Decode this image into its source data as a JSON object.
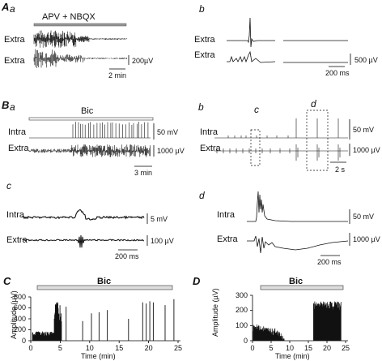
{
  "panels": {
    "Aa": {
      "label_main": "A",
      "label_sub": "a",
      "drug_bar": "APV + NBQX",
      "traces": [
        "Extra",
        "Extra"
      ],
      "scale_y": "200µV",
      "scale_x": "2 min"
    },
    "Ab": {
      "label": "b",
      "traces": [
        "Extra",
        "Extra"
      ],
      "scale_y": "500 µV",
      "scale_x": "200 ms"
    },
    "Ba": {
      "label_main": "B",
      "label_sub": "a",
      "drug_bar": "Bic",
      "traces": [
        "Intra",
        "Extra"
      ],
      "scale_y1": "50 mV",
      "scale_y2": "1000 µV",
      "scale_x": "3 min"
    },
    "Bb": {
      "label": "b",
      "box_c": "c",
      "box_d": "d",
      "traces": [
        "Intra",
        "Extra"
      ],
      "scale_y1": "50 mV",
      "scale_y2": "1000 µV",
      "scale_x": "2 s"
    },
    "Bc": {
      "label": "c",
      "traces": [
        "Intra",
        "Extra"
      ],
      "scale_y1": "5 mV",
      "scale_y2": "100 µV",
      "scale_x": "200 ms"
    },
    "Bd": {
      "label": "d",
      "traces": [
        "Intra",
        "Extra"
      ],
      "scale_y1": "50 mV",
      "scale_y2": "1000 µV",
      "scale_x": "200 ms"
    },
    "C": {
      "label": "C",
      "drug_bar": "Bic",
      "ylabel": "Amplitude (µV)",
      "xlabel": "Time (min)",
      "yticks": [
        "0",
        "200",
        "400",
        "600",
        "800"
      ],
      "xticks": [
        "0",
        "5",
        "10",
        "15",
        "20",
        "25"
      ]
    },
    "D": {
      "label": "D",
      "drug_bar": "Bic",
      "ylabel": "Amplitude (µV)",
      "xlabel": "Time (min)",
      "yticks": [
        "0",
        "100",
        "200",
        "300"
      ],
      "xticks": [
        "0",
        "5",
        "10",
        "15",
        "20",
        "25"
      ]
    }
  }
}
